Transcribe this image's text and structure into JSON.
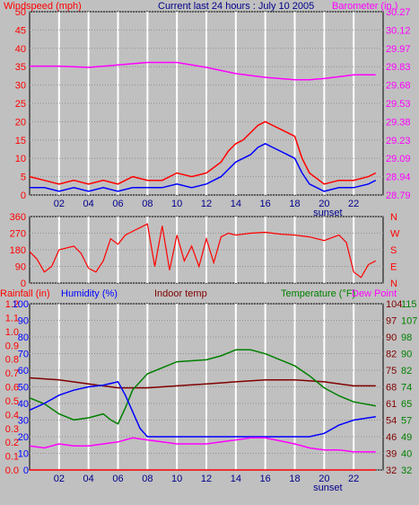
{
  "chart_data": [
    {
      "type": "line",
      "title": "Current last 24 hours : July 10 2005",
      "left_label": "Windspeed (mph)",
      "right_label": "Barometer (in.)",
      "categories": [
        "02",
        "04",
        "06",
        "08",
        "10",
        "12",
        "14",
        "16",
        "18",
        "20",
        "22"
      ],
      "sunset_label": "sunset",
      "ylim_left": [
        0,
        50
      ],
      "left_ticks": [
        "50",
        "45",
        "40",
        "35",
        "30",
        "25",
        "20",
        "15",
        "10",
        "5",
        "0"
      ],
      "ylim_right": [
        28.79,
        30.27
      ],
      "right_ticks": [
        "30.27",
        "30.12",
        "29.97",
        "29.83",
        "29.68",
        "29.53",
        "29.38",
        "29.23",
        "29.09",
        "28.94",
        "28.79"
      ],
      "series": [
        {
          "key": "wind_gust",
          "color": "#ff0000",
          "x": [
            0,
            1,
            2,
            3,
            4,
            5,
            6,
            7,
            8,
            9,
            10,
            11,
            12,
            13,
            13.5,
            14,
            14.5,
            15,
            15.5,
            16,
            16.5,
            17,
            17.5,
            18,
            18.5,
            19,
            20,
            21,
            22,
            23,
            23.5
          ],
          "values": [
            5,
            4,
            3,
            4,
            3,
            4,
            3,
            5,
            4,
            4,
            6,
            5,
            6,
            9,
            12,
            14,
            15,
            17,
            19,
            20,
            19,
            18,
            17,
            16,
            10,
            6,
            3,
            4,
            4,
            5,
            6
          ]
        },
        {
          "key": "wind_avg",
          "color": "#0000ff",
          "x": [
            0,
            1,
            2,
            3,
            4,
            5,
            6,
            7,
            8,
            9,
            10,
            11,
            12,
            13,
            13.5,
            14,
            14.5,
            15,
            15.5,
            16,
            16.5,
            17,
            17.5,
            18,
            18.5,
            19,
            20,
            21,
            22,
            23,
            23.5
          ],
          "values": [
            2,
            2,
            1,
            2,
            1,
            2,
            1,
            2,
            2,
            2,
            3,
            2,
            3,
            5,
            7,
            9,
            10,
            11,
            13,
            14,
            13,
            12,
            11,
            10,
            6,
            3,
            1,
            2,
            2,
            3,
            4
          ]
        },
        {
          "key": "barometer",
          "color": "#ff00ff",
          "x": [
            0,
            2,
            4,
            6,
            8,
            10,
            12,
            14,
            16,
            18,
            19,
            20,
            22,
            23.5
          ],
          "values": [
            29.83,
            29.83,
            29.82,
            29.84,
            29.86,
            29.86,
            29.82,
            29.77,
            29.74,
            29.72,
            29.72,
            29.73,
            29.76,
            29.76
          ]
        }
      ]
    },
    {
      "type": "line",
      "left_ticks": [
        "360",
        "270",
        "180",
        "90",
        "0"
      ],
      "right_ticks": [
        "N",
        "W",
        "S",
        "E",
        "N"
      ],
      "ylim": [
        0,
        360
      ],
      "categories": [
        "02",
        "04",
        "06",
        "08",
        "10",
        "12",
        "14",
        "16",
        "18",
        "20",
        "22"
      ],
      "series": [
        {
          "key": "wind_dir",
          "color": "#ff0000",
          "x": [
            0,
            0.5,
            1,
            1.5,
            2,
            3,
            3.5,
            4,
            4.5,
            5,
            5.5,
            6,
            6.5,
            7,
            7.5,
            8,
            8.5,
            9,
            9.5,
            10,
            10.5,
            11,
            11.5,
            12,
            12.5,
            13,
            13.5,
            14,
            15,
            16,
            17,
            18,
            19,
            20,
            21,
            21.5,
            22,
            22.5,
            23,
            23.5
          ],
          "values": [
            170,
            130,
            60,
            90,
            180,
            200,
            160,
            80,
            60,
            120,
            240,
            210,
            260,
            280,
            300,
            320,
            90,
            310,
            70,
            260,
            120,
            200,
            90,
            240,
            110,
            250,
            270,
            260,
            270,
            275,
            265,
            260,
            250,
            230,
            260,
            220,
            60,
            30,
            100,
            120
          ]
        }
      ]
    },
    {
      "type": "line",
      "labels": {
        "rainfall": "Rainfall (in)",
        "humidity": "Humidity (%)",
        "indoor": "Indoor temp",
        "temperature": "Temperature (°F)",
        "dewpoint": "Dew Point"
      },
      "rain_ticks": [
        "1.2",
        "1.1",
        "1.0",
        "0.9",
        "0.8",
        "0.7",
        "0.6",
        "0.5",
        "0.4",
        "0.3",
        "0.2",
        "0.1",
        "0.0"
      ],
      "humidity_ticks": [
        "100",
        "90",
        "80",
        "70",
        "60",
        "50",
        "40",
        "30",
        "20",
        "10",
        "0"
      ],
      "temp_ticks_right1": [
        "104",
        "97",
        "90",
        "82",
        "75",
        "68",
        "61",
        "54",
        "46",
        "39",
        "32"
      ],
      "temp_ticks_right2": [
        "115",
        "107",
        "98",
        "90",
        "82",
        "74",
        "65",
        "57",
        "49",
        "40",
        "32"
      ],
      "categories": [
        "02",
        "04",
        "06",
        "08",
        "10",
        "12",
        "14",
        "16",
        "18",
        "20",
        "22"
      ],
      "sunset_label": "sunset",
      "series": [
        {
          "key": "indoor",
          "color": "#800000",
          "x": [
            0,
            2,
            4,
            6,
            8,
            10,
            12,
            14,
            16,
            18,
            20,
            22,
            23.5
          ],
          "values": [
            78,
            77,
            75,
            73,
            73,
            74,
            75,
            76,
            77,
            77,
            76,
            74,
            74
          ],
          "scale": "temp"
        },
        {
          "key": "temperature",
          "color": "#008000",
          "x": [
            0,
            1,
            2,
            3,
            4,
            5,
            5.5,
            6,
            6.5,
            7,
            8,
            10,
            12,
            13,
            14,
            15,
            16,
            18,
            19,
            20,
            21,
            22,
            23.5
          ],
          "values": [
            68,
            65,
            60,
            57,
            58,
            60,
            57,
            55,
            63,
            72,
            80,
            86,
            87,
            89,
            92,
            92,
            90,
            84,
            79,
            73,
            69,
            66,
            64
          ],
          "scale": "temp"
        },
        {
          "key": "humidity",
          "color": "#0000ff",
          "x": [
            0,
            1,
            2,
            3,
            4,
            5,
            6,
            6.5,
            7,
            7.5,
            8,
            10,
            12,
            14,
            16,
            18,
            19,
            20,
            21,
            22,
            23.5
          ],
          "values": [
            36,
            40,
            45,
            48,
            50,
            51,
            53,
            45,
            35,
            25,
            20,
            20,
            20,
            20,
            20,
            20,
            20,
            22,
            27,
            30,
            32
          ],
          "unit": "pct"
        },
        {
          "key": "dewpoint",
          "color": "#ff00ff",
          "x": [
            0,
            1,
            2,
            3,
            4,
            5,
            6,
            7,
            8,
            9,
            10,
            12,
            14,
            15,
            16,
            18,
            19,
            20,
            21,
            22,
            23.5
          ],
          "values": [
            44,
            43,
            45,
            44,
            44,
            45,
            46,
            48,
            47,
            46,
            45,
            45,
            47,
            48,
            48,
            45,
            43,
            42,
            42,
            41,
            41
          ],
          "scale": "temp"
        },
        {
          "key": "rainfall",
          "color": "#ff0000",
          "x": [
            0,
            23.5
          ],
          "values": [
            0,
            0
          ],
          "unit": "in"
        }
      ]
    }
  ]
}
